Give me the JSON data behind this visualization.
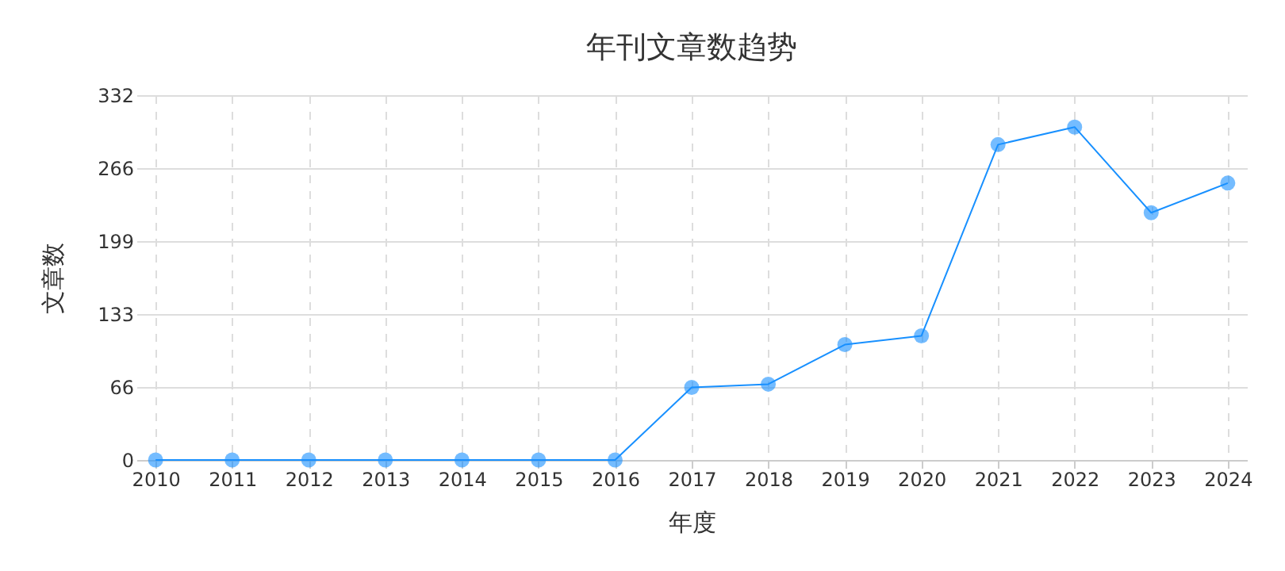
{
  "chart_data": {
    "type": "line",
    "title": "年刊文章数趋势",
    "xlabel": "年度",
    "ylabel": "文章数",
    "categories": [
      "2010",
      "2011",
      "2012",
      "2013",
      "2014",
      "2015",
      "2016",
      "2017",
      "2018",
      "2019",
      "2020",
      "2021",
      "2022",
      "2023",
      "2024"
    ],
    "series": [
      {
        "color": "#1890ff",
        "values": [
          0,
          0,
          0,
          0,
          0,
          0,
          0,
          66,
          69,
          105,
          113,
          287,
          303,
          225,
          252
        ]
      }
    ],
    "ylim": [
      0,
      332
    ],
    "yticks": [
      0,
      {
        "value": 66.4,
        "label": "66"
      },
      {
        "value": 132.8,
        "label": "133"
      },
      {
        "value": 199.2,
        "label": "199"
      },
      {
        "value": 265.6,
        "label": "266"
      },
      332
    ],
    "grid": true,
    "marker": "circle",
    "line_style": "solid"
  }
}
